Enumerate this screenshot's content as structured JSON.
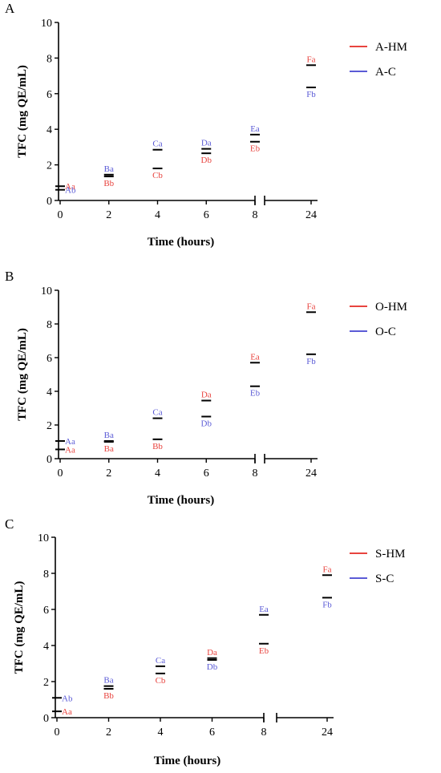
{
  "colors": {
    "hm": "#e8443f",
    "c": "#5b5bd6",
    "axis": "#000000"
  },
  "chart_data": [
    {
      "panel": "A",
      "type": "scatter",
      "xlabel": "Time (hours)",
      "ylabel": "TFC (mg QE/mL)",
      "ylim": [
        0,
        10
      ],
      "y_ticks": [
        0,
        2,
        4,
        6,
        8,
        10
      ],
      "x_ticks": [
        0,
        2,
        4,
        6,
        8,
        24
      ],
      "x_axis_break": "between 8 and 24",
      "legend_position": "top-right",
      "series": [
        {
          "name": "A-HM",
          "color_key": "hm",
          "x": [
            0,
            2,
            4,
            6,
            8,
            24
          ],
          "y": [
            0.8,
            1.35,
            1.8,
            2.65,
            3.3,
            7.6
          ],
          "labels": [
            "Aa",
            "Bb",
            "Cb",
            "Db",
            "Eb",
            "Fa"
          ]
        },
        {
          "name": "A-C",
          "color_key": "c",
          "x": [
            0,
            2,
            4,
            6,
            8,
            24
          ],
          "y": [
            0.6,
            1.45,
            2.85,
            2.9,
            3.7,
            6.35
          ],
          "labels": [
            "Ab",
            "Ba",
            "Ca",
            "Da",
            "Ea",
            "Fb"
          ]
        }
      ]
    },
    {
      "panel": "B",
      "type": "scatter",
      "xlabel": "Time (hours)",
      "ylabel": "TFC (mg QE/mL)",
      "ylim": [
        0,
        10
      ],
      "y_ticks": [
        0,
        2,
        4,
        6,
        8,
        10
      ],
      "x_ticks": [
        0,
        2,
        4,
        6,
        8,
        24
      ],
      "x_axis_break": "between 8 and 24",
      "legend_position": "top-right",
      "series": [
        {
          "name": "O-HM",
          "color_key": "hm",
          "x": [
            0,
            2,
            4,
            6,
            8,
            24
          ],
          "y": [
            0.55,
            1.0,
            1.15,
            3.45,
            5.7,
            8.7
          ],
          "labels": [
            "Aa",
            "Ba",
            "Bb",
            "Da",
            "Ea",
            "Fa"
          ]
        },
        {
          "name": "O-C",
          "color_key": "c",
          "x": [
            0,
            2,
            4,
            6,
            8,
            24
          ],
          "y": [
            1.05,
            1.05,
            2.4,
            2.5,
            4.3,
            6.2
          ],
          "labels": [
            "Aa",
            "Ba",
            "Ca",
            "Db",
            "Eb",
            "Fb"
          ]
        }
      ]
    },
    {
      "panel": "C",
      "type": "scatter",
      "xlabel": "Time (hours)",
      "ylabel": "TFC (mg QE/mL)",
      "ylim": [
        0,
        10
      ],
      "y_ticks": [
        0,
        2,
        4,
        6,
        8,
        10
      ],
      "x_ticks": [
        0,
        2,
        4,
        6,
        8,
        24
      ],
      "x_axis_break": "between 8 and 24",
      "legend_position": "top-right",
      "series": [
        {
          "name": "S-HM",
          "color_key": "hm",
          "x": [
            0,
            2,
            4,
            6,
            8,
            24
          ],
          "y": [
            0.35,
            1.6,
            2.45,
            3.3,
            4.1,
            7.9
          ],
          "labels": [
            "Aa",
            "Bb",
            "Cb",
            "Da",
            "Eb",
            "Fa"
          ]
        },
        {
          "name": "S-C",
          "color_key": "c",
          "x": [
            0,
            2,
            4,
            6,
            8,
            24
          ],
          "y": [
            1.1,
            1.75,
            2.85,
            3.2,
            5.7,
            6.65
          ],
          "labels": [
            "Ab",
            "Ba",
            "Ca",
            "Db",
            "Ea",
            "Fb"
          ]
        }
      ]
    }
  ]
}
